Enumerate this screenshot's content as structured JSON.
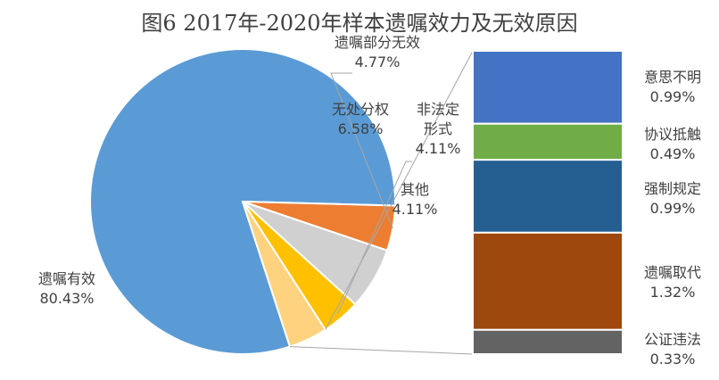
{
  "chart_data": {
    "type": "bar-of-pie",
    "title": "图6 2017年-2020年样本遗嘱效力及无效原因",
    "pie": [
      {
        "name": "遗嘱有效",
        "value": 80.43,
        "label": "80.43%",
        "color": "#5b9bd5"
      },
      {
        "name": "遗嘱部分无效",
        "value": 4.77,
        "label": "4.77%",
        "color": "#ed7d31"
      },
      {
        "name": "无处分权",
        "value": 6.58,
        "label": "6.58%",
        "color": "#d0d0d0"
      },
      {
        "name": "非法定形式",
        "value": 4.11,
        "label": "4.11%",
        "color": "#ffc000"
      },
      {
        "name": "其他",
        "value": 4.11,
        "label": "4.11%",
        "color": "#ffd27f"
      }
    ],
    "bar": [
      {
        "name": "意思不明",
        "value": 0.99,
        "label": "0.99%",
        "color": "#4472c4"
      },
      {
        "name": "协议抵触",
        "value": 0.49,
        "label": "0.49%",
        "color": "#70ad47"
      },
      {
        "name": "强制规定",
        "value": 0.99,
        "label": "0.99%",
        "color": "#255e91"
      },
      {
        "name": "遗嘱取代",
        "value": 1.32,
        "label": "1.32%",
        "color": "#9e480e"
      },
      {
        "name": "公证违法",
        "value": 0.33,
        "label": "0.33%",
        "color": "#636363"
      }
    ]
  }
}
